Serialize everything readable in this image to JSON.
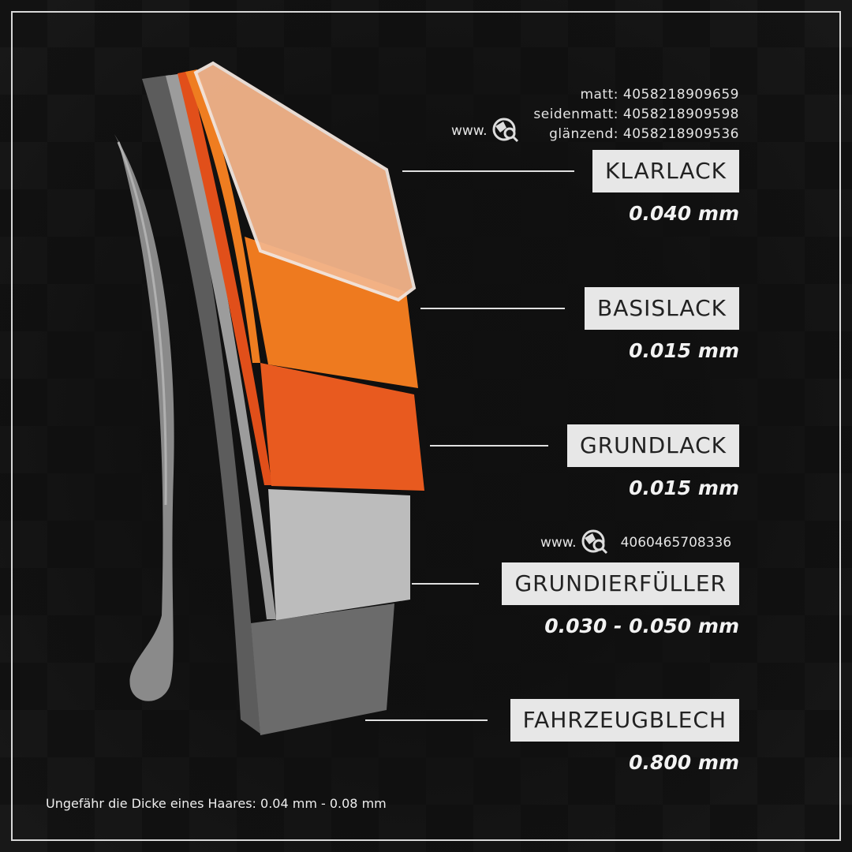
{
  "products": {
    "top_codes": [
      "matt: 4058218909659",
      "seidenmatt: 4058218909598",
      "glänzend: 4058218909536"
    ],
    "top_www": "www.",
    "filler_www": "www.",
    "filler_code": "4060465708336",
    "icon": "globe-search-icon"
  },
  "layers": [
    {
      "name": "KLARLACK",
      "thickness": "0.040 mm",
      "color": "#f3b48a"
    },
    {
      "name": "BASISLACK",
      "thickness": "0.015 mm",
      "color": "#ee7a1f"
    },
    {
      "name": "GRUNDLACK",
      "thickness": "0.015 mm",
      "color": "#e85a1f"
    },
    {
      "name": "GRUNDIERFÜLLER",
      "thickness": "0.030 - 0.050 mm",
      "color": "#bdbdbd"
    },
    {
      "name": "FAHRZEUGBLECH",
      "thickness": "0.800 mm",
      "color": "#6e6e6e"
    }
  ],
  "footer": "Ungefähr die Dicke eines Haares:  0.04 mm - 0.08 mm"
}
